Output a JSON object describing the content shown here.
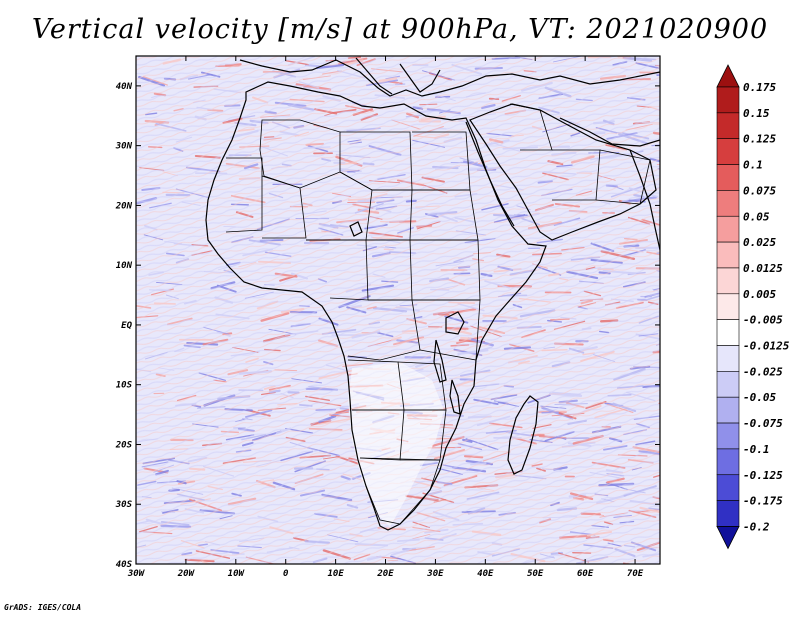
{
  "title": "Vertical velocity [m/s] at 900hPa, VT: 2021020900",
  "credit": "GrADS: IGES/COLA",
  "map": {
    "lon_range": [
      -30,
      75
    ],
    "lat_range": [
      -40,
      45
    ],
    "lat_ticks": [
      {
        "value": 40,
        "label": "40N"
      },
      {
        "value": 30,
        "label": "30N"
      },
      {
        "value": 20,
        "label": "20N"
      },
      {
        "value": 10,
        "label": "10N"
      },
      {
        "value": 0,
        "label": "EQ"
      },
      {
        "value": -10,
        "label": "10S"
      },
      {
        "value": -20,
        "label": "20S"
      },
      {
        "value": -30,
        "label": "30S"
      },
      {
        "value": -40,
        "label": "40S"
      }
    ],
    "lon_ticks": [
      {
        "value": -30,
        "label": "30W"
      },
      {
        "value": -20,
        "label": "20W"
      },
      {
        "value": -10,
        "label": "10W"
      },
      {
        "value": 0,
        "label": "0"
      },
      {
        "value": 10,
        "label": "10E"
      },
      {
        "value": 20,
        "label": "20E"
      },
      {
        "value": 30,
        "label": "30E"
      },
      {
        "value": 40,
        "label": "40E"
      },
      {
        "value": 50,
        "label": "50E"
      },
      {
        "value": 60,
        "label": "60E"
      },
      {
        "value": 70,
        "label": "70E"
      }
    ],
    "field": "vertical velocity (shaded noisy field, red = positive, blue = negative)",
    "coastlines": "black"
  },
  "colorbar": {
    "levels": [
      {
        "label": "0.175",
        "color": "#b01c1c"
      },
      {
        "label": "0.15",
        "color": "#c42a2a"
      },
      {
        "label": "0.125",
        "color": "#d63e3e"
      },
      {
        "label": "0.1",
        "color": "#e45c5c"
      },
      {
        "label": "0.075",
        "color": "#ee7d7d"
      },
      {
        "label": "0.05",
        "color": "#f59e9e"
      },
      {
        "label": "0.025",
        "color": "#fabcbc"
      },
      {
        "label": "0.0125",
        "color": "#fcd6d6"
      },
      {
        "label": "0.005",
        "color": "#fde9e9"
      },
      {
        "label": "-0.005",
        "color": "#ffffff"
      },
      {
        "label": "-0.0125",
        "color": "#e6e6fb"
      },
      {
        "label": "-0.025",
        "color": "#ccccf6"
      },
      {
        "label": "-0.05",
        "color": "#b0b0f0"
      },
      {
        "label": "-0.075",
        "color": "#9090ea"
      },
      {
        "label": "-0.1",
        "color": "#6e6ee2"
      },
      {
        "label": "-0.125",
        "color": "#4c4cd6"
      },
      {
        "label": "-0.175",
        "color": "#3030c4"
      },
      {
        "label": "-0.2",
        "color": "#1c1cae"
      }
    ],
    "top_arrow_color": "#9c1010",
    "bottom_arrow_color": "#10109a"
  }
}
